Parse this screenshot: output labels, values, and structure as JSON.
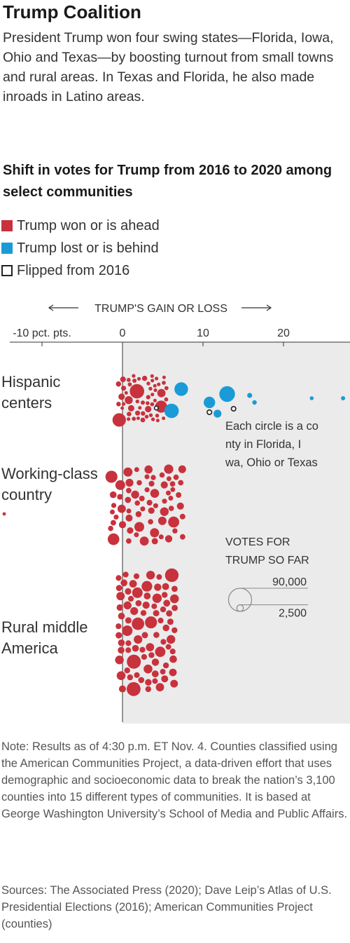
{
  "header": {
    "title": "Trump Coalition",
    "dek": "President Trump won four swing states—Florida, Iowa, Ohio and Texas—by boosting turnout from small towns and rural areas. In Texas and Florida, he also made inroads in Latino areas."
  },
  "chart_subtitle": "Shift in votes for Trump from 2016 to 2020 among select communities",
  "legend": [
    {
      "label": "Trump won or is ahead",
      "color": "#c8323c",
      "kind": "filled"
    },
    {
      "label": "Trump lost or is behind",
      "color": "#1a9bd7",
      "kind": "filled"
    },
    {
      "label": "Flipped from 2016",
      "color": "#222222",
      "kind": "outline"
    }
  ],
  "chart_data": {
    "type": "scatter",
    "subtype": "beeswarm",
    "title": "Shift in votes for Trump from 2016 to 2020 among select communities",
    "axis_title": "TRUMP'S GAIN OR LOSS",
    "x_ticks": [
      {
        "value": -10,
        "label": "-10 pct. pts."
      },
      {
        "value": 0,
        "label": "0"
      },
      {
        "value": 10,
        "label": "10"
      },
      {
        "value": 20,
        "label": "20"
      }
    ],
    "xlim": [
      -15.2,
      28.5
    ],
    "shaded_region": "x >= 0",
    "colors": {
      "won": "#c8323c",
      "lost": "#1a9bd7",
      "shade": "#ebebeb"
    },
    "categories": [
      {
        "name": "Hispanic centers",
        "swarm": {
          "x_min": -0.5,
          "x_max": 5.5,
          "count": 52,
          "r_min": 2.5,
          "r_max": 10
        }
      },
      {
        "name": "Working-class country",
        "swarm": {
          "x_min": -1.5,
          "x_max": 7.5,
          "count": 65,
          "r_min": 3.5,
          "r_max": 9
        }
      },
      {
        "name": "Rural middle America",
        "swarm": {
          "x_min": -0.5,
          "x_max": 6.5,
          "count": 135,
          "r_min": 4,
          "r_max": 10
        }
      }
    ],
    "points": [
      {
        "group": "Hispanic centers",
        "x": 1.8,
        "votes": 70000,
        "won": true
      },
      {
        "group": "Hispanic centers",
        "x": 4.8,
        "votes": 45000,
        "won": true
      },
      {
        "group": "Hispanic centers",
        "x": 7.3,
        "votes": 60000,
        "won": false
      },
      {
        "group": "Hispanic centers",
        "x": 6.1,
        "votes": 70000,
        "won": false
      },
      {
        "group": "Hispanic centers",
        "x": 13.0,
        "votes": 85000,
        "won": false
      },
      {
        "group": "Hispanic centers",
        "x": 10.8,
        "votes": 40000,
        "won": false
      },
      {
        "group": "Hispanic centers",
        "x": 11.8,
        "votes": 15000,
        "won": false
      },
      {
        "group": "Hispanic centers",
        "x": 15.8,
        "votes": 4000,
        "won": false
      },
      {
        "group": "Hispanic centers",
        "x": 16.4,
        "votes": 2500,
        "won": false
      },
      {
        "group": "Hispanic centers",
        "x": 23.5,
        "votes": 1500,
        "won": false
      },
      {
        "group": "Hispanic centers",
        "x": 27.4,
        "votes": 2000,
        "won": false
      },
      {
        "group": "Hispanic centers",
        "x": 4.2,
        "votes": 1000,
        "won": true,
        "flipped": true
      },
      {
        "group": "Hispanic centers",
        "x": 10.8,
        "votes": 3000,
        "won": true,
        "flipped": true
      },
      {
        "group": "Hispanic centers",
        "x": 13.8,
        "votes": 2500,
        "won": true,
        "flipped": true
      },
      {
        "group": "Working-class country",
        "x": -14.7,
        "votes": 800,
        "won": true
      }
    ],
    "annotation": "Each circle is a county in Florida, Iowa, Ohio or Texas",
    "size_legend": {
      "title": "VOTES FOR TRUMP SO FAR",
      "values": [
        90000,
        2500
      ],
      "labels": [
        "90,000",
        "2,500"
      ]
    }
  },
  "note": "Note: Results as of 4:30 p.m. ET Nov. 4. Counties classified using the American Communities Project, a data-driven effort that uses demographic and socioeconomic data to break the nation’s 3,100 counties into 15 different types of communities. It is based at George Washington University’s School of Media and Public Affairs.",
  "sources": "Sources: The Associated Press (2020); Dave Leip’s Atlas of U.S. Presidential Elections (2016); American Communities Project (counties)"
}
